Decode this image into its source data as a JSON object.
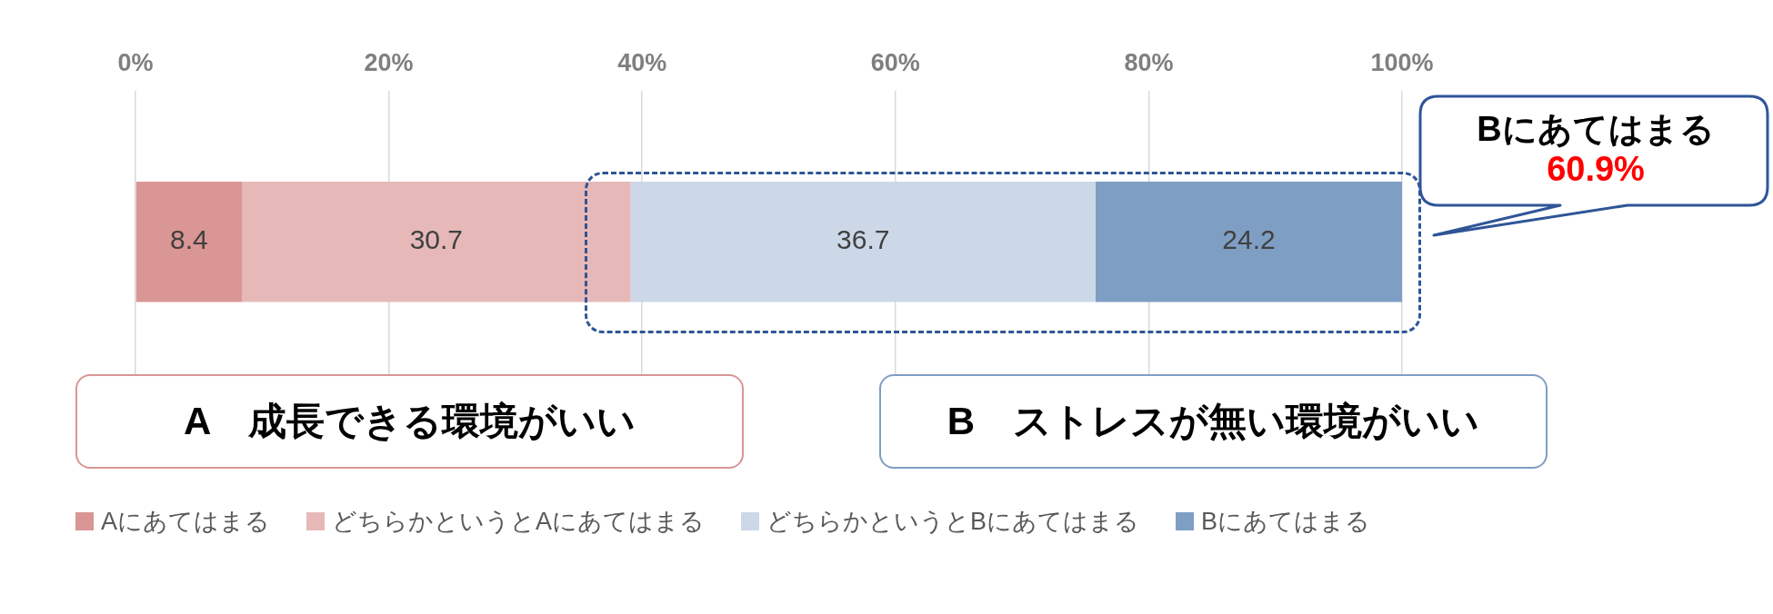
{
  "chart_data": {
    "type": "bar",
    "orientation": "horizontal",
    "stacked": true,
    "categories": [
      null
    ],
    "series": [
      {
        "name": "Aにあてはまる",
        "color": "#d99694",
        "values": [
          8.4
        ]
      },
      {
        "name": "どちらかというとAにあてはまる",
        "color": "#e6b9b8",
        "values": [
          30.7
        ]
      },
      {
        "name": "どちらかというとBにあてはまる",
        "color": "#ccd8e8",
        "values": [
          36.7
        ]
      },
      {
        "name": "Bにあてはまる",
        "color": "#7f9ec4",
        "values": [
          24.2
        ]
      }
    ],
    "xlim": [
      0,
      100
    ],
    "xticks": [
      {
        "value": 0,
        "label": "0%"
      },
      {
        "value": 20,
        "label": "20%"
      },
      {
        "value": 40,
        "label": "40%"
      },
      {
        "value": 60,
        "label": "60%"
      },
      {
        "value": 80,
        "label": "80%"
      },
      {
        "value": 100,
        "label": "100%"
      }
    ],
    "grid": "x",
    "legend": "bottom",
    "data_labels": true,
    "annotations": [
      "A　成長できる環境がいい",
      "B　ストレスが無い環境がいい",
      "Bにあてはまる",
      "60.9%"
    ]
  }
}
